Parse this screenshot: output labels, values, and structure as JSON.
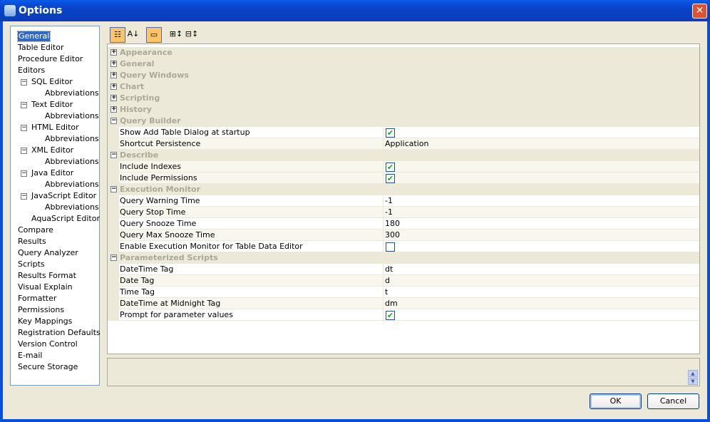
{
  "window": {
    "title": "Options",
    "close": "✕"
  },
  "tree": [
    {
      "label": "General",
      "level": 0,
      "selected": true
    },
    {
      "label": "Table Editor",
      "level": 0
    },
    {
      "label": "Procedure Editor",
      "level": 0
    },
    {
      "label": "Editors",
      "level": 0
    },
    {
      "label": "SQL Editor",
      "level": 1,
      "expanded": true
    },
    {
      "label": "Abbreviations",
      "level": 2
    },
    {
      "label": "Text Editor",
      "level": 1,
      "expanded": true
    },
    {
      "label": "Abbreviations",
      "level": 2
    },
    {
      "label": "HTML Editor",
      "level": 1,
      "expanded": true
    },
    {
      "label": "Abbreviations",
      "level": 2
    },
    {
      "label": "XML Editor",
      "level": 1,
      "expanded": true
    },
    {
      "label": "Abbreviations",
      "level": 2
    },
    {
      "label": "Java Editor",
      "level": 1,
      "expanded": true
    },
    {
      "label": "Abbreviations",
      "level": 2
    },
    {
      "label": "JavaScript Editor",
      "level": 1,
      "expanded": true
    },
    {
      "label": "Abbreviations",
      "level": 2
    },
    {
      "label": "AquaScript Editor",
      "level": 1
    },
    {
      "label": "Compare",
      "level": 0
    },
    {
      "label": "Results",
      "level": 0
    },
    {
      "label": "Query Analyzer",
      "level": 0
    },
    {
      "label": "Scripts",
      "level": 0
    },
    {
      "label": "Results Format",
      "level": 0
    },
    {
      "label": "Visual Explain",
      "level": 0
    },
    {
      "label": "Formatter",
      "level": 0
    },
    {
      "label": "Permissions",
      "level": 0
    },
    {
      "label": "Key Mappings",
      "level": 0
    },
    {
      "label": "Registration Defaults",
      "level": 0
    },
    {
      "label": "Version Control",
      "level": 0
    },
    {
      "label": "E-mail",
      "level": 0
    },
    {
      "label": "Secure Storage",
      "level": 0
    }
  ],
  "toolbar": [
    {
      "name": "categorized-view",
      "glyph": "☷",
      "active": true
    },
    {
      "name": "sort-alphabetical",
      "glyph": "A↓"
    },
    {
      "name": "property-pages",
      "glyph": "▭",
      "active": true
    },
    {
      "name": "expand-all",
      "glyph": "⊞↕"
    },
    {
      "name": "collapse-all",
      "glyph": "⊟↕"
    }
  ],
  "properties": [
    {
      "group": "Appearance",
      "expanded": false
    },
    {
      "group": "General",
      "expanded": false
    },
    {
      "group": "Query Windows",
      "expanded": false
    },
    {
      "group": "Chart",
      "expanded": false
    },
    {
      "group": "Scripting",
      "expanded": false
    },
    {
      "group": "History",
      "expanded": false
    },
    {
      "group": "Query Builder",
      "expanded": true
    },
    {
      "label": "Show Add Table Dialog at startup",
      "checked": true
    },
    {
      "label": "Shortcut Persistence",
      "value": "Application"
    },
    {
      "group": "Describe",
      "expanded": true
    },
    {
      "label": "Include Indexes",
      "checked": true
    },
    {
      "label": "Include Permissions",
      "checked": true
    },
    {
      "group": "Execution Monitor",
      "expanded": true
    },
    {
      "label": "Query Warning Time",
      "value": "-1"
    },
    {
      "label": "Query Stop Time",
      "value": "-1"
    },
    {
      "label": "Query Snooze Time",
      "value": "180"
    },
    {
      "label": "Query Max Snooze Time",
      "value": "300"
    },
    {
      "label": "Enable Execution Monitor for Table Data Editor",
      "checked": false
    },
    {
      "group": "Parameterized Scripts",
      "expanded": true
    },
    {
      "label": "DateTime Tag",
      "value": "dt"
    },
    {
      "label": "Date Tag",
      "value": "d"
    },
    {
      "label": "Time Tag",
      "value": "t"
    },
    {
      "label": "DateTime at Midnight Tag",
      "value": "dm"
    },
    {
      "label": "Prompt for parameter values",
      "checked": true
    }
  ],
  "buttons": {
    "ok": "OK",
    "cancel": "Cancel"
  }
}
